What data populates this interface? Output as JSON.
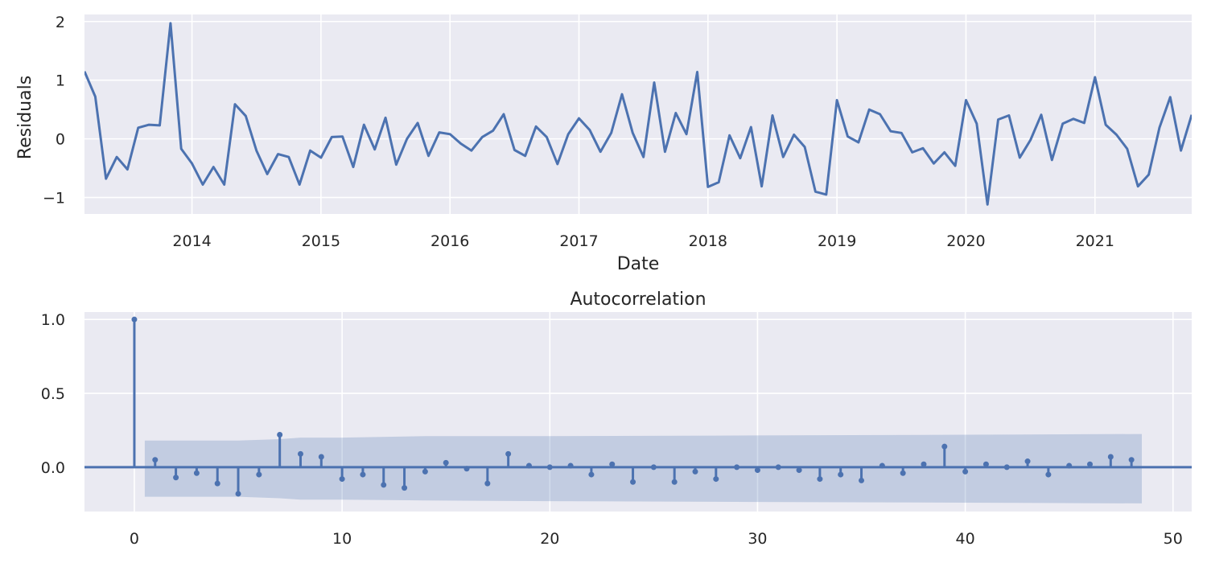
{
  "chart_data": [
    {
      "type": "line",
      "title": "",
      "xlabel": "Date",
      "ylabel": "Residuals",
      "xlim": [
        "2013-03",
        "2021-10"
      ],
      "ylim": [
        -1.28,
        2.12
      ],
      "grid": true,
      "x_ticks": [
        "2014",
        "2015",
        "2016",
        "2017",
        "2018",
        "2019",
        "2020",
        "2021"
      ],
      "y_ticks": [
        {
          "value": -1,
          "label": "−1"
        },
        {
          "value": 0,
          "label": "0"
        },
        {
          "value": 1,
          "label": "1"
        },
        {
          "value": 2,
          "label": "2"
        }
      ],
      "color": "#4c72b0",
      "series": [
        {
          "x_start": "2013-03",
          "frequency": "monthly",
          "values": [
            1.15,
            0.72,
            -0.68,
            -0.31,
            -0.52,
            0.19,
            0.24,
            0.23,
            1.97,
            -0.17,
            -0.42,
            -0.78,
            -0.48,
            -0.78,
            0.59,
            0.39,
            -0.2,
            -0.6,
            -0.26,
            -0.31,
            -0.78,
            -0.2,
            -0.32,
            0.03,
            0.04,
            -0.48,
            0.24,
            -0.18,
            0.36,
            -0.44,
            0.0,
            0.27,
            -0.29,
            0.11,
            0.08,
            -0.08,
            -0.2,
            0.03,
            0.14,
            0.42,
            -0.19,
            -0.29,
            0.21,
            0.03,
            -0.43,
            0.08,
            0.35,
            0.15,
            -0.22,
            0.1,
            0.76,
            0.1,
            -0.31,
            0.96,
            -0.22,
            0.44,
            0.08,
            1.14,
            -0.82,
            -0.74,
            0.06,
            -0.33,
            0.2,
            -0.81,
            0.4,
            -0.31,
            0.07,
            -0.14,
            -0.9,
            -0.95,
            0.66,
            0.04,
            -0.06,
            0.5,
            0.42,
            0.13,
            0.1,
            -0.23,
            -0.16,
            -0.42,
            -0.23,
            -0.46,
            0.66,
            0.26,
            -1.12,
            0.33,
            0.4,
            -0.32,
            -0.02,
            0.41,
            -0.36,
            0.26,
            0.34,
            0.27,
            1.05,
            0.24,
            0.07,
            -0.17,
            -0.81,
            -0.61,
            0.19,
            0.71,
            -0.2,
            0.41
          ]
        }
      ]
    },
    {
      "type": "bar",
      "subtype": "stem",
      "title": "Autocorrelation",
      "xlabel": "",
      "ylabel": "",
      "xlim": [
        -2.4,
        50.9
      ],
      "ylim": [
        -0.3,
        1.05
      ],
      "grid": true,
      "x_ticks": [
        0,
        10,
        20,
        30,
        40,
        50
      ],
      "y_ticks": [
        {
          "value": 0,
          "label": "0.0"
        },
        {
          "value": 0.5,
          "label": "0.5"
        },
        {
          "value": 1,
          "label": "1.0"
        }
      ],
      "color": "#4c72b0",
      "lags": [
        0,
        1,
        2,
        3,
        4,
        5,
        6,
        7,
        8,
        9,
        10,
        11,
        12,
        13,
        14,
        15,
        16,
        17,
        18,
        19,
        20,
        21,
        22,
        23,
        24,
        25,
        26,
        27,
        28,
        29,
        30,
        31,
        32,
        33,
        34,
        35,
        36,
        37,
        38,
        39,
        40,
        41,
        42,
        43,
        44,
        45,
        46,
        47,
        48
      ],
      "values": [
        1.0,
        0.05,
        -0.07,
        -0.04,
        -0.11,
        -0.18,
        -0.05,
        0.22,
        0.09,
        0.07,
        -0.08,
        -0.05,
        -0.12,
        -0.14,
        -0.03,
        0.03,
        -0.01,
        -0.11,
        0.09,
        0.01,
        0.0,
        0.01,
        -0.05,
        0.02,
        -0.1,
        0.0,
        -0.1,
        -0.03,
        -0.08,
        0.0,
        -0.02,
        0.0,
        -0.02,
        -0.08,
        -0.05,
        -0.09,
        0.01,
        -0.04,
        0.02,
        0.14,
        -0.03,
        0.02,
        0.0,
        0.04,
        -0.05,
        0.01,
        0.02,
        0.07,
        0.05
      ],
      "confidence_band": {
        "lags": [
          0.5,
          5,
          7,
          8,
          10,
          14,
          20,
          30,
          40,
          48.5
        ],
        "upper": [
          0.18,
          0.18,
          0.19,
          0.2,
          0.2,
          0.21,
          0.21,
          0.215,
          0.22,
          0.225
        ],
        "lower": [
          -0.2,
          -0.2,
          -0.21,
          -0.22,
          -0.22,
          -0.225,
          -0.23,
          -0.235,
          -0.24,
          -0.245
        ]
      }
    }
  ]
}
